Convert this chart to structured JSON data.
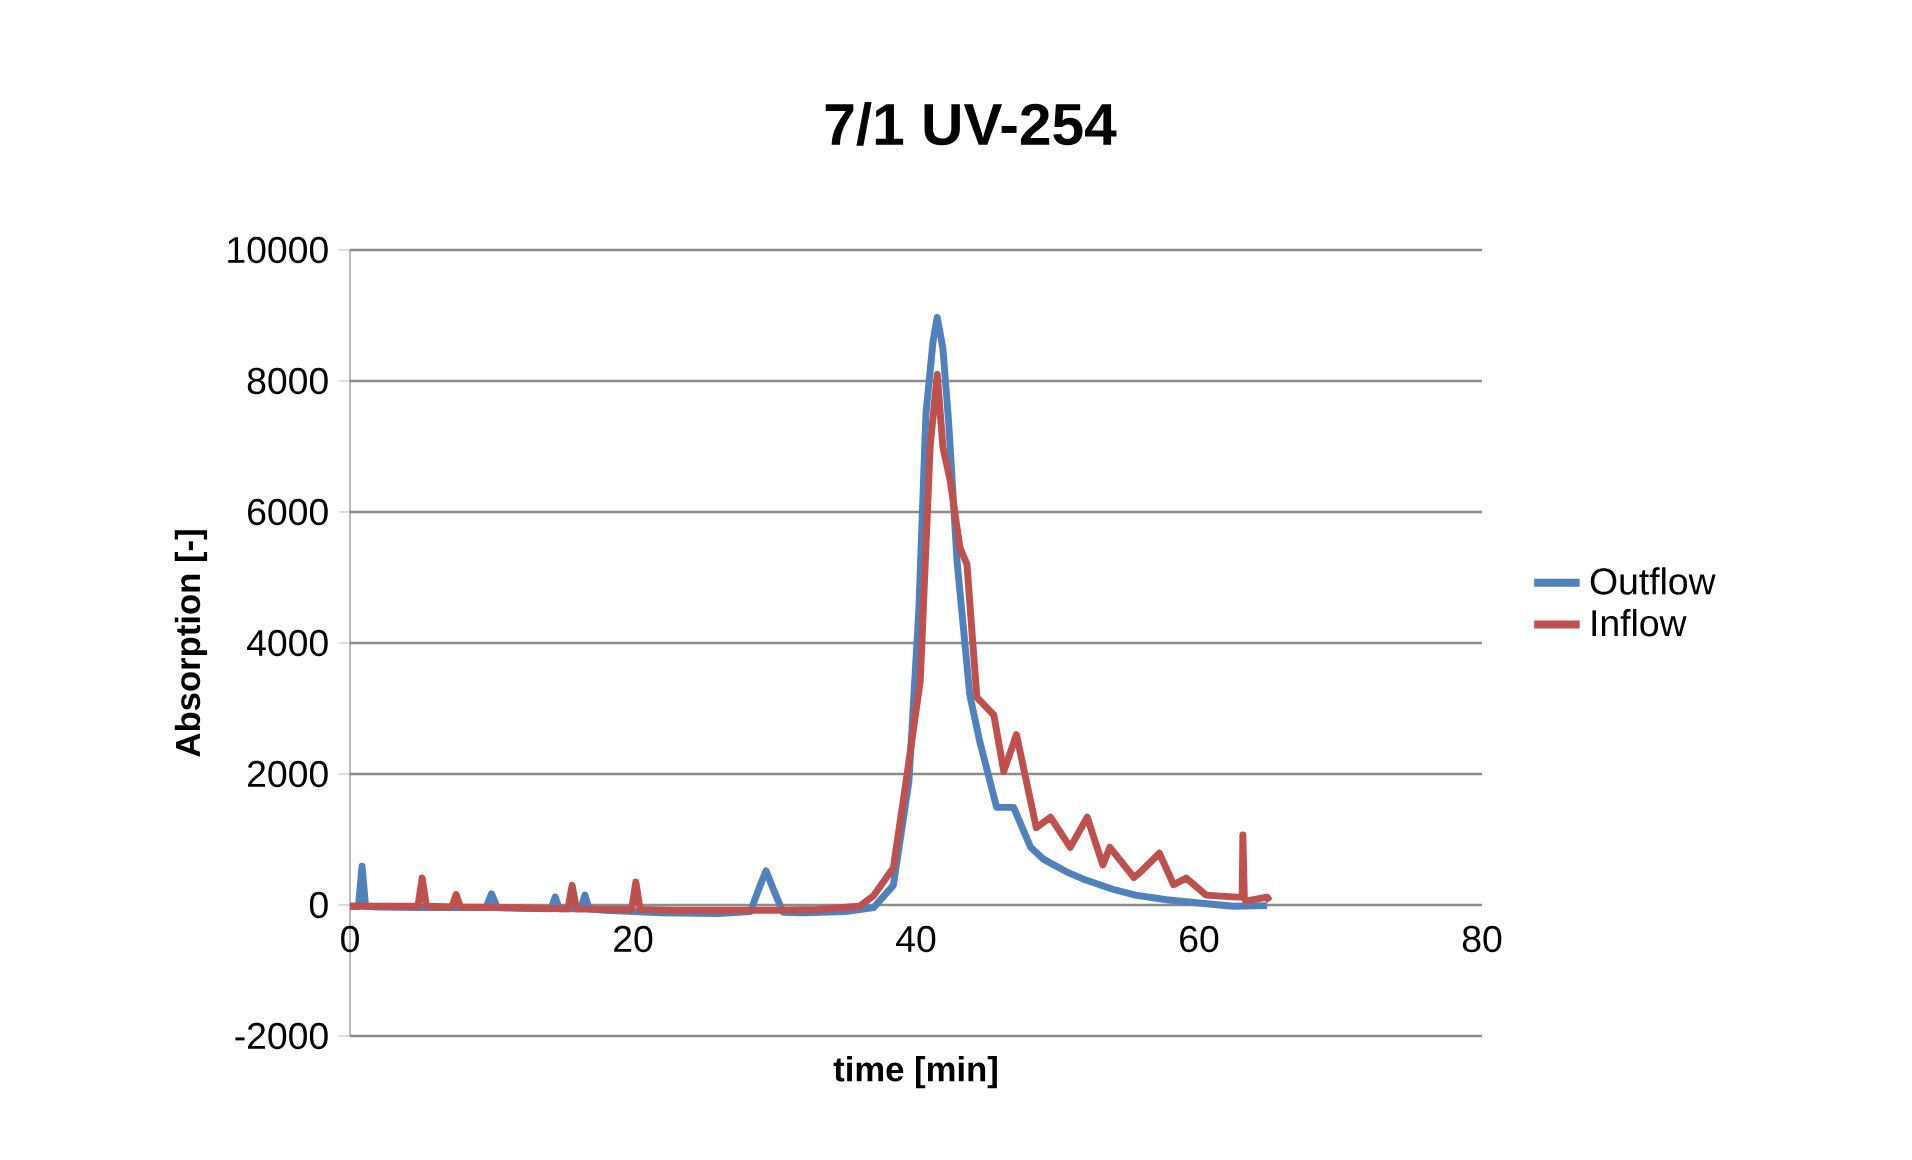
{
  "chart_data": {
    "type": "line",
    "title": "7/1 UV-254",
    "xlabel": "time [min]",
    "ylabel": "Absorption [-]",
    "xlim": [
      0,
      80
    ],
    "xticks": [
      0,
      20,
      40,
      60,
      80
    ],
    "ylim": [
      -2000,
      10000
    ],
    "yticks": [
      -2000,
      0,
      2000,
      4000,
      6000,
      8000,
      10000
    ],
    "grid": "y",
    "legend": "right",
    "marker": "none",
    "line_style": "solid",
    "series": [
      {
        "name": "Outflow",
        "color": "#4f81bd",
        "x": [
          0,
          0.6,
          0.85,
          1.1,
          2,
          5,
          9.6,
          10,
          10.4,
          12,
          14.2,
          14.5,
          14.8,
          16.3,
          16.6,
          16.9,
          18,
          22,
          26,
          28.3,
          28.9,
          29.4,
          29.9,
          30.6,
          32,
          35,
          37,
          38.4,
          39.5,
          40.2,
          40.7,
          41.2,
          41.5,
          41.9,
          42.3,
          42.9,
          43.8,
          44.5,
          45.7,
          46.9,
          48.1,
          49,
          50.6,
          52,
          53.9,
          55.5,
          57.7,
          60,
          62.4,
          64.8
        ],
        "values": [
          -20,
          -20,
          590,
          -20,
          -30,
          -40,
          -40,
          170,
          -40,
          -50,
          -60,
          120,
          -60,
          -60,
          150,
          -60,
          -80,
          -120,
          -130,
          -100,
          250,
          520,
          250,
          -110,
          -120,
          -100,
          -40,
          300,
          1890,
          4500,
          7490,
          8600,
          8970,
          8500,
          7390,
          5250,
          3210,
          2500,
          1490,
          1490,
          880,
          700,
          510,
          380,
          240,
          150,
          80,
          30,
          -20,
          -10
        ]
      },
      {
        "name": "Inflow",
        "color": "#c0504d",
        "x": [
          0,
          2,
          4.8,
          5.1,
          5.4,
          7.2,
          7.5,
          7.8,
          10,
          13,
          15.4,
          15.7,
          16,
          18,
          19.9,
          20.2,
          20.5,
          23,
          27,
          30,
          33,
          36,
          37,
          38.4,
          39.3,
          40.3,
          41,
          41.5,
          41.9,
          42.4,
          43.1,
          43.6,
          44.3,
          45.5,
          46.2,
          47.1,
          48.5,
          49.5,
          50.9,
          52.1,
          53.2,
          53.7,
          55.4,
          55.9,
          57.2,
          58.2,
          59.1,
          60.5,
          62.7,
          63.05,
          63.1,
          63.2,
          63.3,
          64.8,
          65
        ],
        "values": [
          -20,
          -20,
          -20,
          410,
          -20,
          -30,
          160,
          -30,
          -40,
          -50,
          -60,
          300,
          -60,
          -70,
          -70,
          350,
          -70,
          -80,
          -80,
          -80,
          -70,
          -20,
          140,
          570,
          1890,
          3420,
          7000,
          8100,
          6990,
          6500,
          5460,
          5200,
          3170,
          2900,
          2040,
          2600,
          1180,
          1340,
          880,
          1340,
          610,
          880,
          420,
          510,
          790,
          310,
          410,
          150,
          120,
          120,
          1070,
          120,
          60,
          120,
          60
        ]
      }
    ]
  }
}
